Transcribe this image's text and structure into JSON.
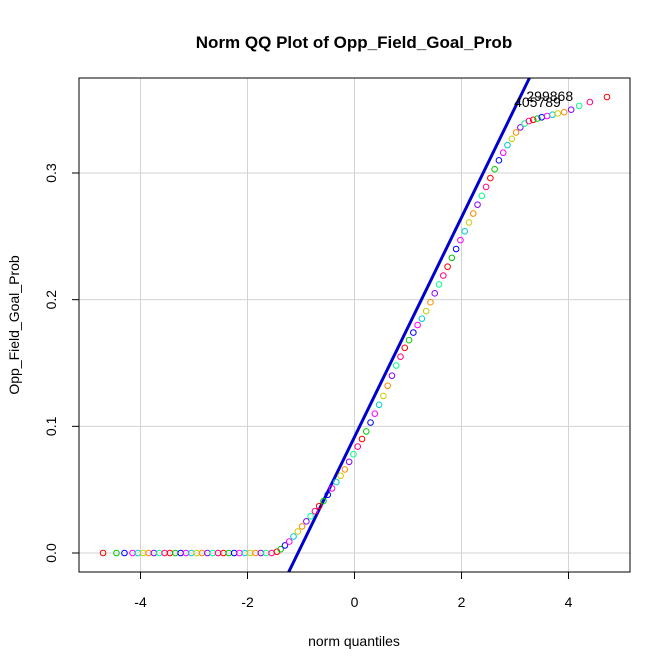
{
  "chart_data": {
    "type": "scatter",
    "title": "Norm QQ Plot of Opp_Field_Goal_Prob",
    "xlabel": "norm quantiles",
    "ylabel": "Opp_Field_Goal_Prob",
    "xlim": [
      -5.15,
      5.15
    ],
    "ylim": [
      -0.015,
      0.375
    ],
    "xticks": [
      -4,
      -2,
      0,
      2,
      4
    ],
    "yticks": [
      0.0,
      0.1,
      0.2,
      0.3
    ],
    "ytick_labels": [
      "0.0",
      "0.1",
      "0.2",
      "0.3"
    ],
    "grid": true,
    "reference_line": {
      "color": "#0000cc",
      "points": [
        [
          -1.23,
          -0.015
        ],
        [
          3.27,
          0.375
        ]
      ]
    },
    "annotations": [
      {
        "text": "299868",
        "x": 3.65,
        "y": 0.357
      },
      {
        "text": "405789",
        "x": 3.42,
        "y": 0.352
      }
    ],
    "colors": [
      "#ff0000",
      "#00cc00",
      "#0000ff",
      "#ff00ff",
      "#00cccc",
      "#cccc00",
      "#ff8800",
      "#8800ff",
      "#00ff88",
      "#ff0088"
    ],
    "series": [
      {
        "name": "",
        "points": [
          [
            -4.7,
            0.0
          ],
          [
            -4.45,
            0.0
          ],
          [
            -4.3,
            0.0
          ],
          [
            -4.15,
            0.0
          ],
          [
            -4.05,
            0.0
          ],
          [
            -3.95,
            0.0
          ],
          [
            -3.85,
            0.0
          ],
          [
            -3.75,
            0.0
          ],
          [
            -3.65,
            0.0
          ],
          [
            -3.55,
            0.0
          ],
          [
            -3.45,
            0.0
          ],
          [
            -3.35,
            0.0
          ],
          [
            -3.25,
            0.0
          ],
          [
            -3.15,
            0.0
          ],
          [
            -3.05,
            0.0
          ],
          [
            -2.95,
            0.0
          ],
          [
            -2.85,
            0.0
          ],
          [
            -2.75,
            0.0
          ],
          [
            -2.65,
            0.0
          ],
          [
            -2.55,
            0.0
          ],
          [
            -2.45,
            0.0
          ],
          [
            -2.35,
            0.0
          ],
          [
            -2.25,
            0.0
          ],
          [
            -2.15,
            0.0
          ],
          [
            -2.05,
            0.0
          ],
          [
            -1.95,
            0.0
          ],
          [
            -1.85,
            0.0
          ],
          [
            -1.75,
            0.0
          ],
          [
            -1.65,
            0.0
          ],
          [
            -1.55,
            0.0
          ],
          [
            -1.45,
            0.001
          ],
          [
            -1.38,
            0.003
          ],
          [
            -1.3,
            0.006
          ],
          [
            -1.22,
            0.009
          ],
          [
            -1.14,
            0.013
          ],
          [
            -1.06,
            0.017
          ],
          [
            -0.98,
            0.021
          ],
          [
            -0.9,
            0.025
          ],
          [
            -0.82,
            0.029
          ],
          [
            -0.74,
            0.033
          ],
          [
            -0.66,
            0.037
          ],
          [
            -0.58,
            0.041
          ],
          [
            -0.5,
            0.046
          ],
          [
            -0.42,
            0.051
          ],
          [
            -0.34,
            0.056
          ],
          [
            -0.26,
            0.061
          ],
          [
            -0.18,
            0.066
          ],
          [
            -0.1,
            0.072
          ],
          [
            -0.02,
            0.078
          ],
          [
            0.06,
            0.084
          ],
          [
            0.14,
            0.09
          ],
          [
            0.22,
            0.096
          ],
          [
            0.3,
            0.103
          ],
          [
            0.38,
            0.11
          ],
          [
            0.46,
            0.117
          ],
          [
            0.54,
            0.124
          ],
          [
            0.62,
            0.132
          ],
          [
            0.7,
            0.14
          ],
          [
            0.78,
            0.148
          ],
          [
            0.86,
            0.155
          ],
          [
            0.94,
            0.162
          ],
          [
            1.02,
            0.168
          ],
          [
            1.1,
            0.174
          ],
          [
            1.18,
            0.18
          ],
          [
            1.26,
            0.185
          ],
          [
            1.34,
            0.191
          ],
          [
            1.42,
            0.198
          ],
          [
            1.5,
            0.205
          ],
          [
            1.58,
            0.212
          ],
          [
            1.66,
            0.219
          ],
          [
            1.74,
            0.226
          ],
          [
            1.82,
            0.233
          ],
          [
            1.9,
            0.24
          ],
          [
            1.98,
            0.247
          ],
          [
            2.06,
            0.254
          ],
          [
            2.14,
            0.261
          ],
          [
            2.22,
            0.268
          ],
          [
            2.3,
            0.275
          ],
          [
            2.38,
            0.282
          ],
          [
            2.46,
            0.289
          ],
          [
            2.54,
            0.296
          ],
          [
            2.62,
            0.303
          ],
          [
            2.7,
            0.31
          ],
          [
            2.78,
            0.316
          ],
          [
            2.86,
            0.322
          ],
          [
            2.94,
            0.327
          ],
          [
            3.02,
            0.332
          ],
          [
            3.1,
            0.336
          ],
          [
            3.18,
            0.339
          ],
          [
            3.26,
            0.341
          ],
          [
            3.34,
            0.342
          ],
          [
            3.42,
            0.343
          ],
          [
            3.5,
            0.344
          ],
          [
            3.6,
            0.345
          ],
          [
            3.7,
            0.346
          ],
          [
            3.8,
            0.347
          ],
          [
            3.92,
            0.348
          ],
          [
            4.05,
            0.35
          ],
          [
            4.2,
            0.353
          ],
          [
            4.4,
            0.356
          ],
          [
            4.72,
            0.36
          ]
        ]
      }
    ]
  }
}
